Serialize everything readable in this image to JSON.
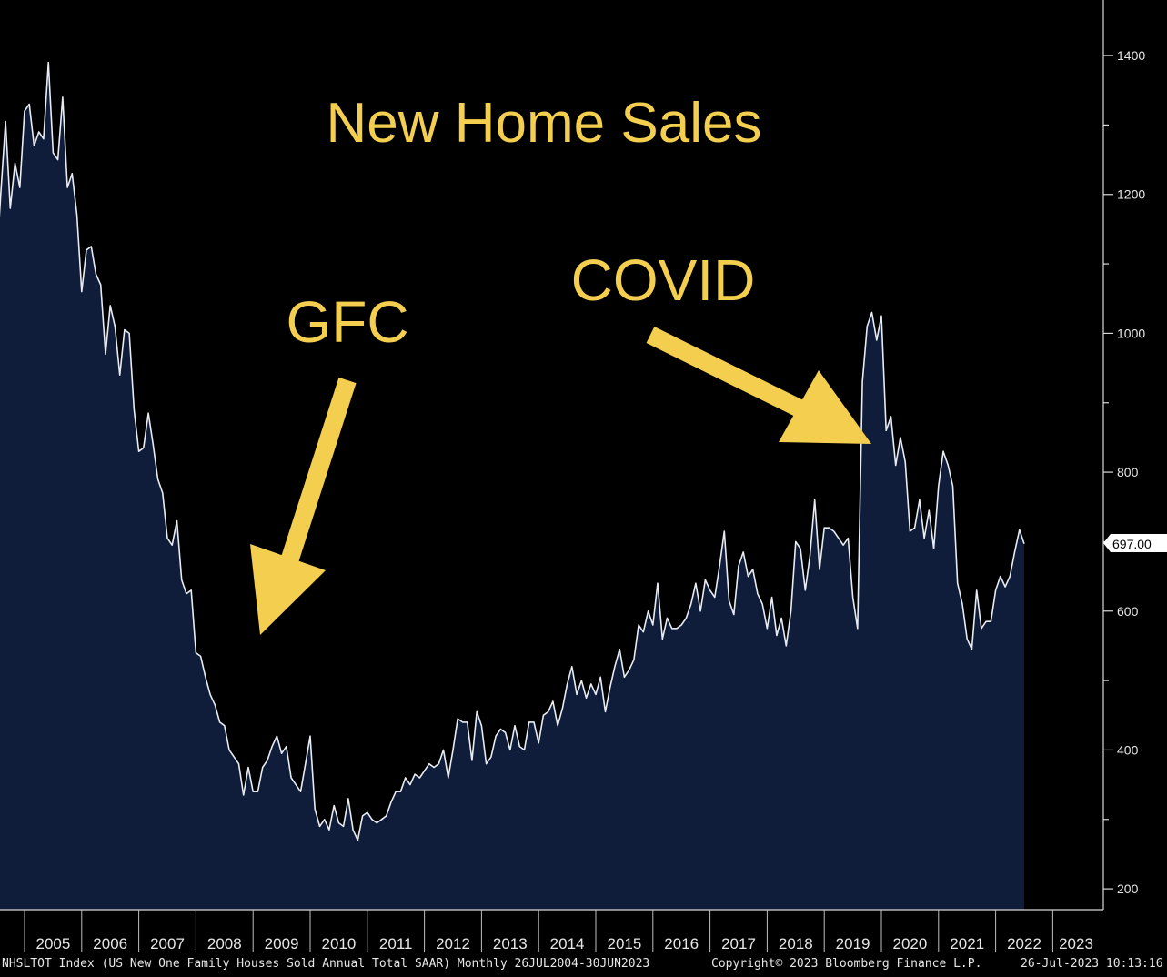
{
  "colors": {
    "background": "#000000",
    "area_fill": "#0f1d3a",
    "line": "#e8ecf2",
    "annotation": "#f4cf4f",
    "axis": "#d9d9d9"
  },
  "annotations": {
    "title": "New Home Sales",
    "gfc": "GFC",
    "covid": "COVID"
  },
  "last_value_label": "697.00",
  "footer": {
    "series": "NHSLTOT Index (US New One Family Houses Sold Annual Total SAAR)  Monthly 26JUL2004-30JUN2023",
    "copyright": "Copyright© 2023 Bloomberg Finance L.P.",
    "timestamp": "26-Jul-2023 10:13:16"
  },
  "chart_data": {
    "type": "area",
    "title": "",
    "xlabel": "",
    "ylabel": "",
    "x_ticks": [
      "2005",
      "2006",
      "2007",
      "2008",
      "2009",
      "2010",
      "2011",
      "2012",
      "2013",
      "2014",
      "2015",
      "2016",
      "2017",
      "2018",
      "2019",
      "2020",
      "2021",
      "2022",
      "2023"
    ],
    "y_ticks": [
      200,
      400,
      600,
      800,
      1000,
      1200,
      1400
    ],
    "ylim": [
      170,
      1480
    ],
    "x_range": [
      "2004-07",
      "2023-06"
    ],
    "series": [
      {
        "values": [
          1090,
          1200,
          1305,
          1180,
          1245,
          1210,
          1320,
          1330,
          1270,
          1290,
          1280,
          1390,
          1260,
          1250,
          1340,
          1210,
          1230,
          1170,
          1060,
          1120,
          1125,
          1085,
          1070,
          970,
          1040,
          1010,
          940,
          1005,
          1000,
          890,
          830,
          835,
          885,
          840,
          790,
          770,
          705,
          695,
          730,
          645,
          625,
          630,
          540,
          535,
          505,
          480,
          465,
          440,
          435,
          400,
          390,
          380,
          335,
          375,
          340,
          340,
          375,
          385,
          405,
          420,
          395,
          405,
          360,
          350,
          340,
          380,
          420,
          315,
          290,
          300,
          285,
          320,
          295,
          290,
          330,
          285,
          270,
          305,
          310,
          300,
          295,
          300,
          305,
          325,
          340,
          340,
          360,
          350,
          365,
          360,
          370,
          380,
          375,
          380,
          400,
          360,
          400,
          445,
          440,
          440,
          385,
          455,
          435,
          380,
          390,
          420,
          430,
          425,
          400,
          435,
          405,
          400,
          440,
          440,
          410,
          450,
          455,
          470,
          435,
          460,
          495,
          520,
          480,
          500,
          475,
          495,
          480,
          505,
          455,
          490,
          520,
          545,
          505,
          515,
          530,
          580,
          570,
          600,
          580,
          640,
          560,
          590,
          575,
          575,
          580,
          590,
          610,
          640,
          600,
          645,
          630,
          620,
          665,
          715,
          615,
          595,
          665,
          685,
          650,
          660,
          625,
          610,
          575,
          620,
          565,
          590,
          550,
          600,
          700,
          690,
          630,
          680,
          760,
          660,
          720,
          720,
          715,
          705,
          695,
          705,
          620,
          575,
          930,
          1010,
          1030,
          990,
          1025,
          860,
          880,
          810,
          850,
          815,
          715,
          720,
          760,
          705,
          745,
          690,
          780,
          830,
          810,
          780,
          640,
          610,
          560,
          545,
          630,
          575,
          585,
          585,
          630,
          650,
          635,
          650,
          685,
          717,
          697
        ]
      }
    ]
  }
}
